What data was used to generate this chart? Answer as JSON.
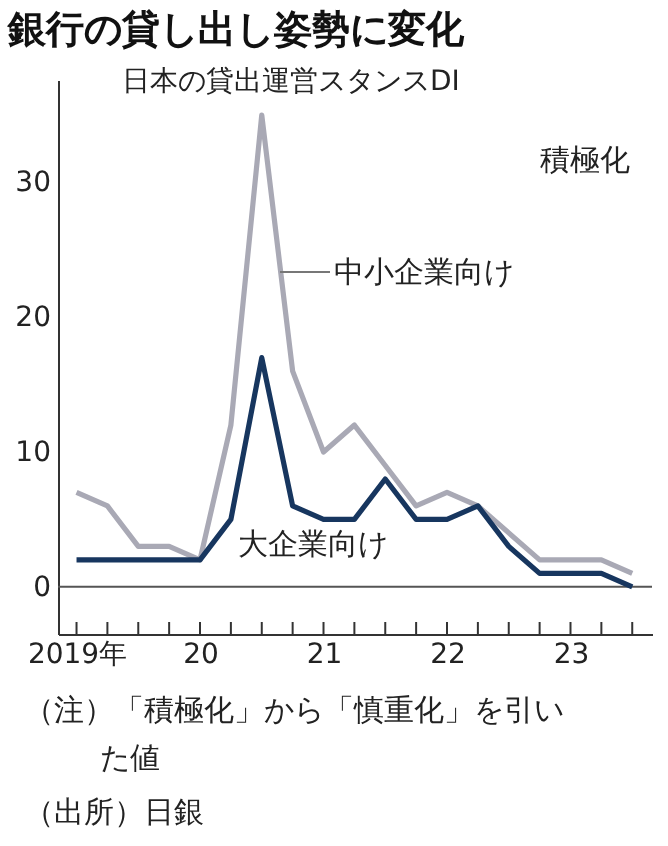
{
  "chart_data": {
    "type": "line",
    "title": "銀行の貸し出し姿勢に変化",
    "subtitle": "日本の貸出運営スタンスDI",
    "x": [
      2019,
      2019.25,
      2019.5,
      2019.75,
      2020,
      2020.25,
      2020.5,
      2020.75,
      2021,
      2021.25,
      2021.5,
      2021.75,
      2022,
      2022.25,
      2022.5,
      2022.75,
      2023,
      2023.25,
      2023.5
    ],
    "series": [
      {
        "name": "中小企業向け",
        "color": "#a9a9b5",
        "values": [
          7,
          6,
          3,
          3,
          2,
          12,
          35,
          16,
          10,
          12,
          9,
          6,
          7,
          6,
          4,
          2,
          2,
          2,
          1
        ]
      },
      {
        "name": "大企業向け",
        "color": "#17365f",
        "values": [
          2,
          2,
          2,
          2,
          2,
          5,
          17,
          6,
          5,
          5,
          8,
          5,
          5,
          6,
          3,
          1,
          1,
          1,
          0
        ]
      }
    ],
    "xlim": [
      2018.85,
      2023.66
    ],
    "xticks": [
      {
        "value": 2019,
        "label": "2019年"
      },
      {
        "value": 2019.25,
        "label": null
      },
      {
        "value": 2019.5,
        "label": null
      },
      {
        "value": 2019.75,
        "label": null
      },
      {
        "value": 2020,
        "label": "20"
      },
      {
        "value": 2020.25,
        "label": null
      },
      {
        "value": 2020.5,
        "label": null
      },
      {
        "value": 2020.75,
        "label": null
      },
      {
        "value": 2021,
        "label": "21"
      },
      {
        "value": 2021.25,
        "label": null
      },
      {
        "value": 2021.5,
        "label": null
      },
      {
        "value": 2021.75,
        "label": null
      },
      {
        "value": 2022,
        "label": "22"
      },
      {
        "value": 2022.25,
        "label": null
      },
      {
        "value": 2022.5,
        "label": null
      },
      {
        "value": 2022.75,
        "label": null
      },
      {
        "value": 2023,
        "label": "23"
      },
      {
        "value": 2023.25,
        "label": null
      },
      {
        "value": 2023.5,
        "label": null
      }
    ],
    "ylim": [
      -3.5,
      37.6
    ],
    "yticks": [
      0,
      10,
      20,
      30
    ],
    "ref_lines": [
      {
        "axis": "y",
        "value": 0,
        "color": "#555555"
      }
    ],
    "grid": false,
    "marker": "none",
    "line_style": "solid",
    "annotations": [
      "積極化",
      "（注）「積極化」から「慎重化」を引いた値",
      "（出所）日銀"
    ]
  }
}
